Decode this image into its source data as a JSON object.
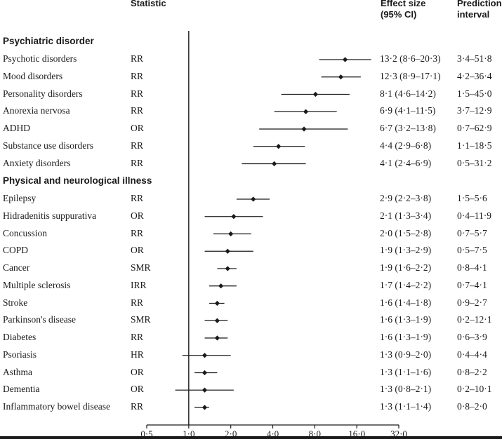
{
  "headers": {
    "statistic": "Statistic",
    "effect_line1": "Effect size",
    "effect_line2": "(95% CI)",
    "pred_line1": "Prediction",
    "pred_line2": "interval"
  },
  "sections": [
    {
      "title": "Psychiatric disorder",
      "rows": [
        {
          "label": "Psychotic disorders",
          "stat": "RR",
          "ci_text": "13·2 (8·6–20·3)",
          "pi_text": "3·4–51·8",
          "est": 13.2,
          "lo": 8.6,
          "hi": 20.3
        },
        {
          "label": "Mood disorders",
          "stat": "RR",
          "ci_text": "12·3 (8·9–17·1)",
          "pi_text": "4·2–36·4",
          "est": 12.3,
          "lo": 8.9,
          "hi": 17.1
        },
        {
          "label": "Personality disorders",
          "stat": "RR",
          "ci_text": "8·1 (4·6–14·2)",
          "pi_text": "1·5–45·0",
          "est": 8.1,
          "lo": 4.6,
          "hi": 14.2
        },
        {
          "label": "Anorexia nervosa",
          "stat": "RR",
          "ci_text": "6·9 (4·1–11·5)",
          "pi_text": "3·7–12·9",
          "est": 6.9,
          "lo": 4.1,
          "hi": 11.5
        },
        {
          "label": "ADHD",
          "stat": "OR",
          "ci_text": "6·7 (3·2–13·8)",
          "pi_text": "0·7–62·9",
          "est": 6.7,
          "lo": 3.2,
          "hi": 13.8
        },
        {
          "label": "Substance use disorders",
          "stat": "RR",
          "ci_text": "4·4 (2·9–6·8)",
          "pi_text": "1·1–18·5",
          "est": 4.4,
          "lo": 2.9,
          "hi": 6.8
        },
        {
          "label": "Anxiety disorders",
          "stat": "RR",
          "ci_text": "4·1 (2·4–6·9)",
          "pi_text": "0·5–31·2",
          "est": 4.1,
          "lo": 2.4,
          "hi": 6.9
        }
      ]
    },
    {
      "title": "Physical and neurological illness",
      "rows": [
        {
          "label": "Epilepsy",
          "stat": "RR",
          "ci_text": "2·9 (2·2–3·8)",
          "pi_text": "1·5–5·6",
          "est": 2.9,
          "lo": 2.2,
          "hi": 3.8
        },
        {
          "label": "Hidradenitis suppurativa",
          "stat": "OR",
          "ci_text": "2·1 (1·3–3·4)",
          "pi_text": "0·4–11·9",
          "est": 2.1,
          "lo": 1.3,
          "hi": 3.4
        },
        {
          "label": "Concussion",
          "stat": "RR",
          "ci_text": "2·0 (1·5–2·8)",
          "pi_text": "0·7–5·7",
          "est": 2.0,
          "lo": 1.5,
          "hi": 2.8
        },
        {
          "label": "COPD",
          "stat": "OR",
          "ci_text": "1·9 (1·3–2·9)",
          "pi_text": "0·5–7·5",
          "est": 1.9,
          "lo": 1.3,
          "hi": 2.9
        },
        {
          "label": "Cancer",
          "stat": "SMR",
          "ci_text": "1·9 (1·6–2·2)",
          "pi_text": "0·8–4·1",
          "est": 1.9,
          "lo": 1.6,
          "hi": 2.2
        },
        {
          "label": "Multiple sclerosis",
          "stat": "IRR",
          "ci_text": "1·7 (1·4–2·2)",
          "pi_text": "0·7–4·1",
          "est": 1.7,
          "lo": 1.4,
          "hi": 2.2
        },
        {
          "label": "Stroke",
          "stat": "RR",
          "ci_text": "1·6 (1·4–1·8)",
          "pi_text": "0·9–2·7",
          "est": 1.6,
          "lo": 1.4,
          "hi": 1.8
        },
        {
          "label": "Parkinson's disease",
          "stat": "SMR",
          "ci_text": "1·6 (1·3–1·9)",
          "pi_text": "0·2–12·1",
          "est": 1.6,
          "lo": 1.3,
          "hi": 1.9
        },
        {
          "label": "Diabetes",
          "stat": "RR",
          "ci_text": "1·6 (1·3–1·9)",
          "pi_text": "0·6–3·9",
          "est": 1.6,
          "lo": 1.3,
          "hi": 1.9
        },
        {
          "label": "Psoriasis",
          "stat": "HR",
          "ci_text": "1·3 (0·9–2·0)",
          "pi_text": "0·4–4·4",
          "est": 1.3,
          "lo": 0.9,
          "hi": 2.0
        },
        {
          "label": "Asthma",
          "stat": "OR",
          "ci_text": "1·3 (1·1–1·6)",
          "pi_text": "0·8–2·2",
          "est": 1.3,
          "lo": 1.1,
          "hi": 1.6
        },
        {
          "label": "Dementia",
          "stat": "OR",
          "ci_text": "1·3 (0·8–2·1)",
          "pi_text": "0·2–10·1",
          "est": 1.3,
          "lo": 0.8,
          "hi": 2.1
        },
        {
          "label": "Inflammatory bowel disease",
          "stat": "RR",
          "ci_text": "1·3 (1·1–1·4)",
          "pi_text": "0·8–2·0",
          "est": 1.3,
          "lo": 1.1,
          "hi": 1.4
        }
      ]
    }
  ],
  "chart_data": {
    "type": "forest",
    "x_scale": "log",
    "x_ticks": [
      0.5,
      1.0,
      2.0,
      4.0,
      8.0,
      16.0,
      32.0
    ],
    "x_tick_labels": [
      "0·5",
      "1·0",
      "2·0",
      "4·0",
      "8·0",
      "16·0",
      "32·0"
    ],
    "xlim": [
      0.5,
      32.0
    ],
    "reference_line": 1.0,
    "marker": "diamond",
    "colors": {
      "ink": "#1a1a1a",
      "background": "#ffffff"
    }
  }
}
